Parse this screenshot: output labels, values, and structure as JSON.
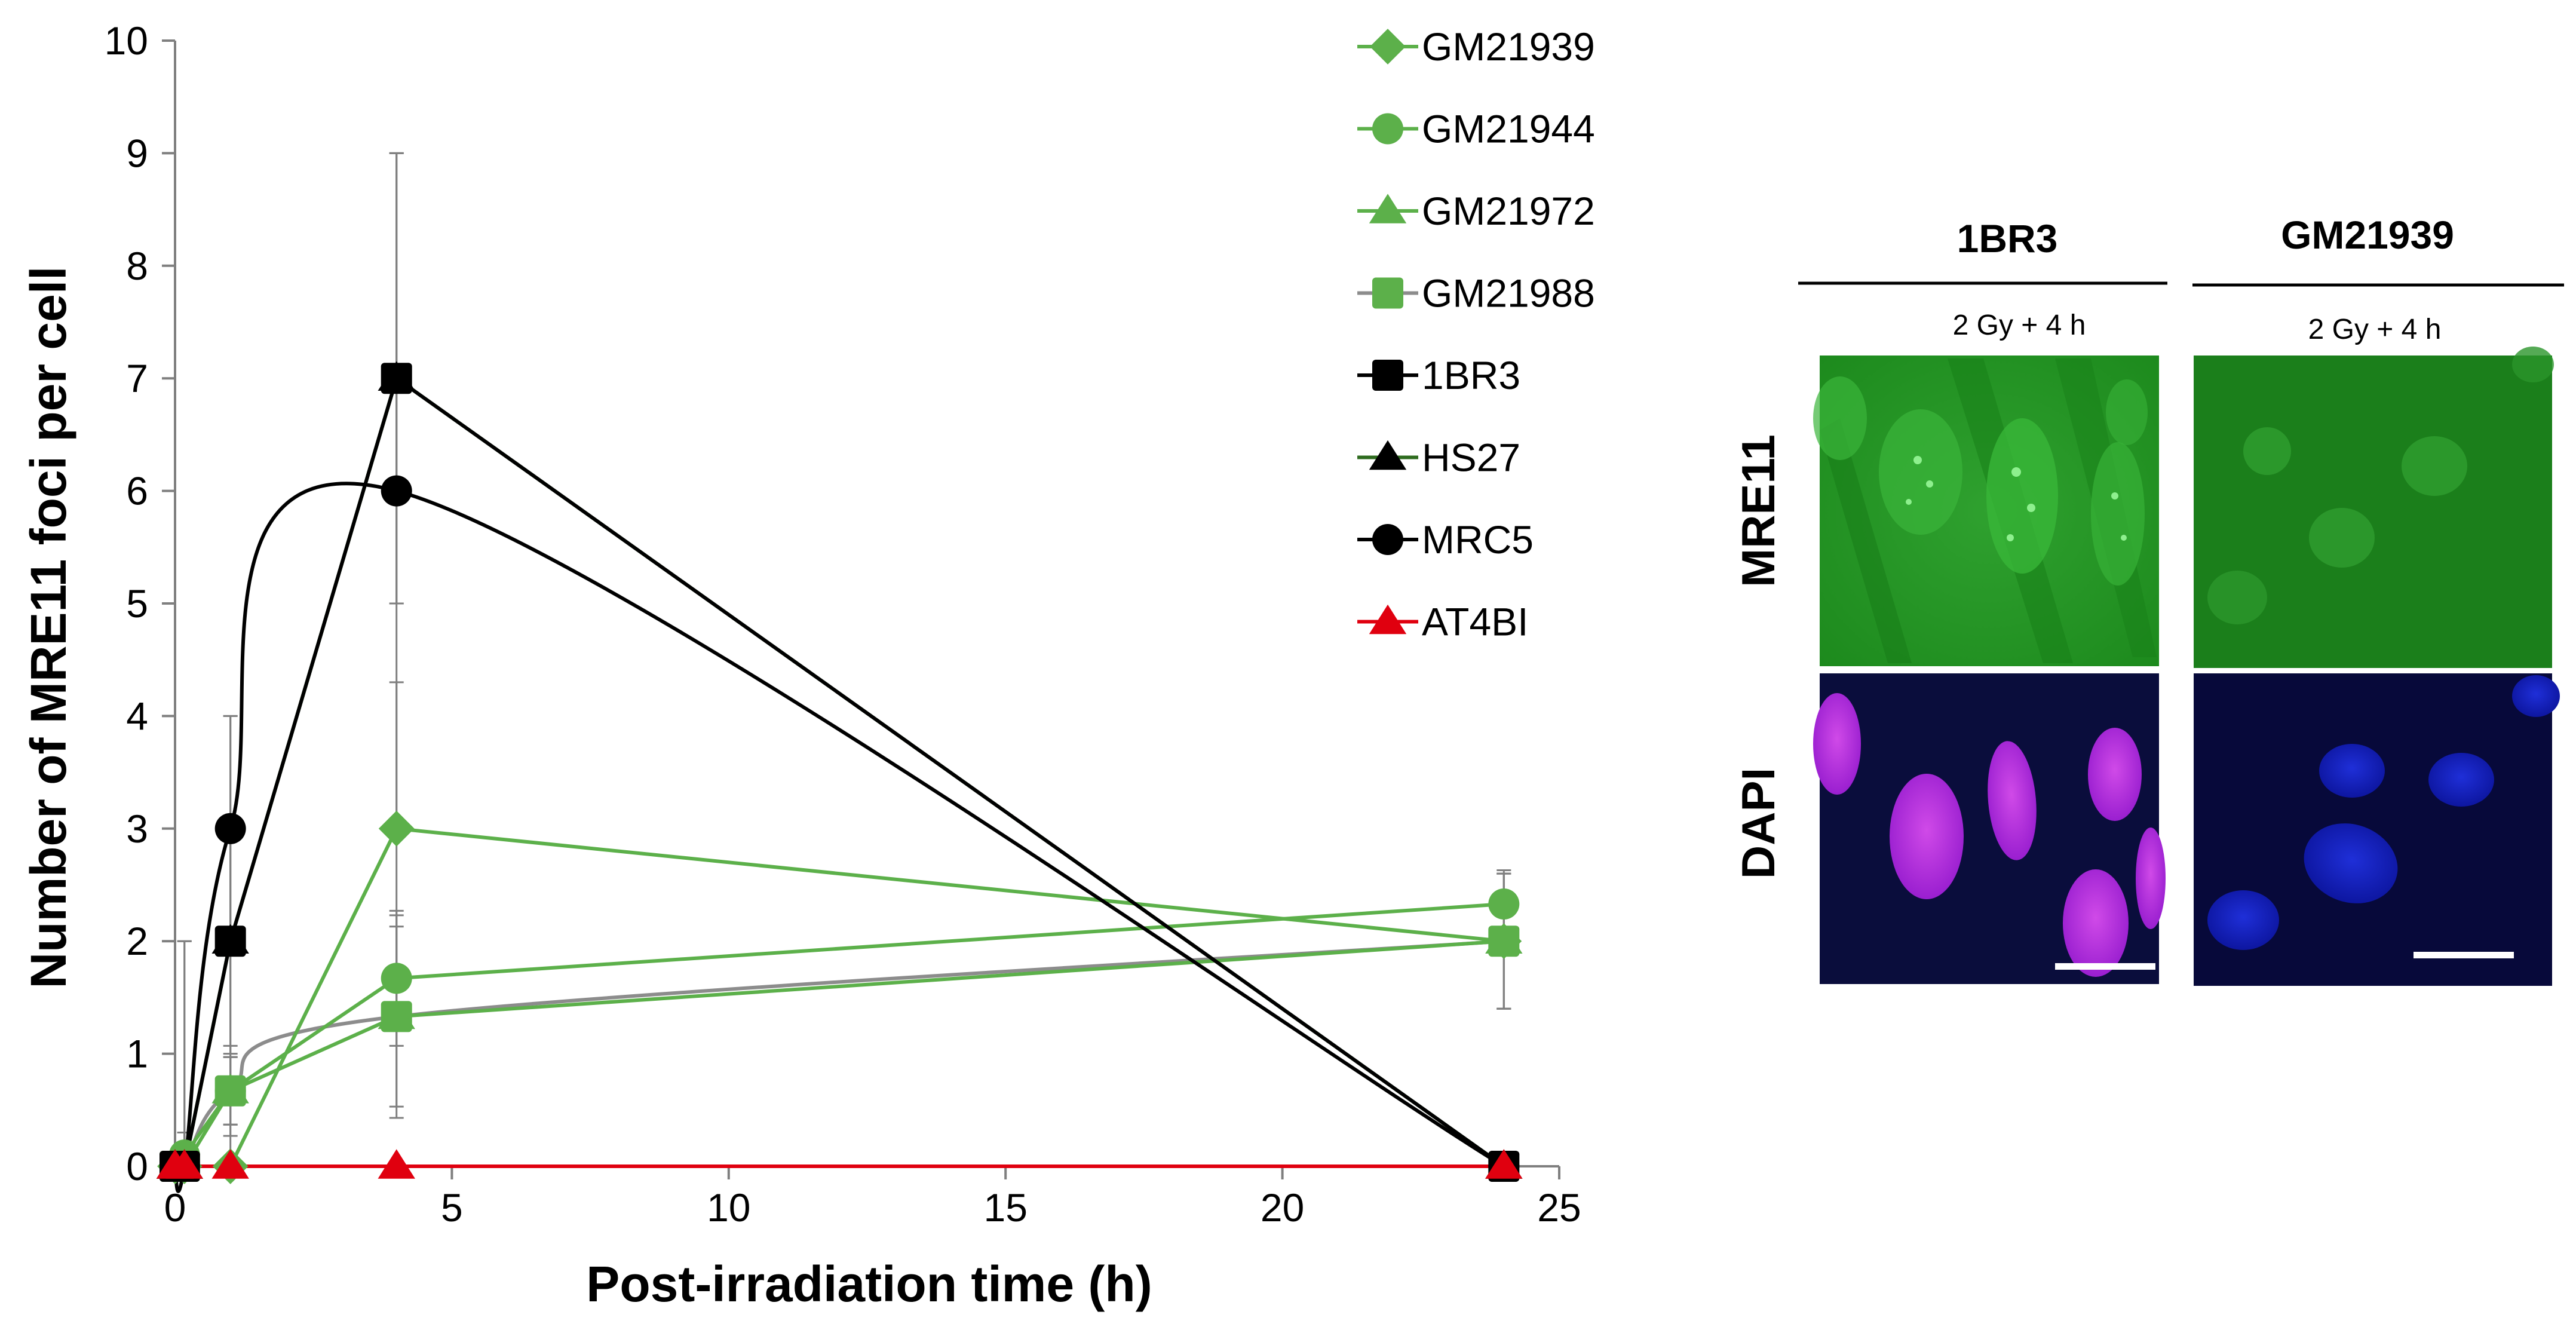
{
  "chart_data": {
    "type": "line",
    "xlabel": "Post-irradiation  time (h)",
    "ylabel": "Number of MRE11 foci per cell",
    "xlim": [
      0,
      25
    ],
    "ylim": [
      0,
      10
    ],
    "x_ticks": [
      "0",
      "5",
      "10",
      "15",
      "20",
      "25"
    ],
    "y_ticks": [
      "0",
      "1",
      "2",
      "3",
      "4",
      "5",
      "6",
      "7",
      "8",
      "9",
      "10"
    ],
    "legend_position": "right",
    "series": [
      {
        "name": "GM21939",
        "marker": "diamond",
        "color": "#5cb04a",
        "smooth": false,
        "x": [
          0,
          0.17,
          1,
          4,
          24
        ],
        "y": [
          0,
          0,
          0,
          3,
          2
        ],
        "err": [
          0,
          0,
          0,
          1.3,
          0.6
        ]
      },
      {
        "name": "GM21944",
        "marker": "circle",
        "color": "#5cb04a",
        "smooth": false,
        "x": [
          0,
          0.17,
          1,
          4,
          24
        ],
        "y": [
          0,
          0.1,
          0.67,
          1.67,
          2.33
        ],
        "err": [
          0,
          0.2,
          0.3,
          0.6,
          0.3
        ]
      },
      {
        "name": "GM21972",
        "marker": "triangle",
        "color": "#5cb04a",
        "smooth": false,
        "x": [
          0,
          0.17,
          1,
          4,
          24
        ],
        "y": [
          0,
          0,
          0.67,
          1.33,
          2
        ],
        "err": [
          0,
          0,
          0.3,
          0.8,
          0.6
        ]
      },
      {
        "name": "GM21988",
        "marker": "square",
        "color": "#5cb04a",
        "line_color": "#8c8c8c",
        "smooth": true,
        "x": [
          0,
          0.17,
          1,
          4,
          24
        ],
        "y": [
          0,
          0,
          0.67,
          1.33,
          2
        ],
        "err": [
          0,
          0.3,
          0.4,
          0.9,
          0.6
        ]
      },
      {
        "name": "1BR3",
        "marker": "square",
        "color": "#000000",
        "smooth": false,
        "x": [
          0,
          0.17,
          1,
          4,
          24
        ],
        "y": [
          0,
          0,
          2,
          7,
          0
        ],
        "err": [
          0,
          0.3,
          1.0,
          2.0,
          0
        ]
      },
      {
        "name": "HS27",
        "marker": "triangle",
        "color": "#000000",
        "line_color": "#2e6b1e",
        "smooth": false,
        "x": [
          0,
          0.17,
          1,
          4,
          24
        ],
        "y": [
          0,
          0,
          2,
          7,
          0
        ],
        "err": [
          0,
          2.0,
          2.0,
          2.0,
          0
        ]
      },
      {
        "name": "MRC5",
        "marker": "circle",
        "color": "#000000",
        "smooth": true,
        "x": [
          0,
          0.17,
          1,
          4,
          24
        ],
        "y": [
          0,
          0,
          3,
          6,
          0
        ],
        "err": [
          0,
          2.0,
          1.0,
          3.0,
          0
        ]
      },
      {
        "name": "AT4BI",
        "marker": "triangle",
        "color": "#e0000f",
        "smooth": false,
        "x": [
          0,
          0.17,
          1,
          4,
          24
        ],
        "y": [
          0,
          0,
          0,
          0,
          0
        ],
        "err": [
          0,
          0,
          0,
          0,
          0
        ]
      }
    ]
  },
  "micrographs": {
    "columns": [
      {
        "name": "1BR3",
        "condition": "2 Gy + 4 h"
      },
      {
        "name": "GM21939",
        "condition": "2 Gy + 4 h"
      }
    ],
    "rows": [
      {
        "name": "MRE11"
      },
      {
        "name": "DAPI"
      }
    ]
  }
}
